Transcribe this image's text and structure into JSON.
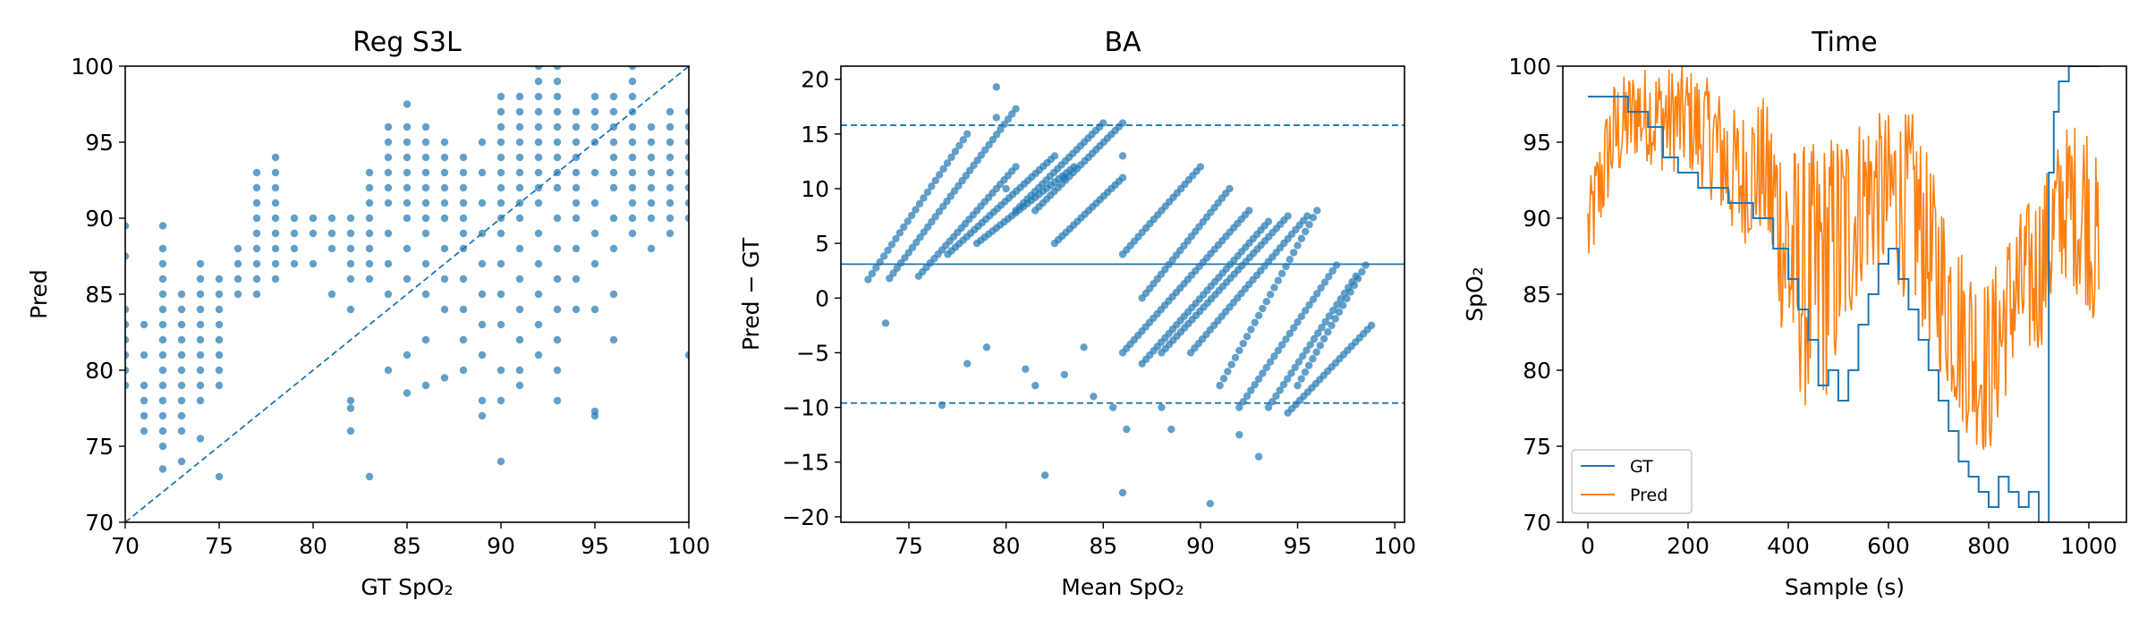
{
  "chart_data": [
    {
      "id": "scatter",
      "type": "scatter",
      "title": "Reg S3L",
      "xlabel": "GT SpO₂",
      "ylabel": "Pred",
      "xlim": [
        70,
        100
      ],
      "ylim": [
        70,
        100
      ],
      "xticks": [
        70,
        75,
        80,
        85,
        90,
        95,
        100
      ],
      "yticks": [
        70,
        75,
        80,
        85,
        90,
        95,
        100
      ],
      "identity_line": true,
      "point_color": "#1f77b4",
      "columns": [
        {
          "x": 70,
          "y": [
            79,
            80,
            81,
            82,
            83,
            84,
            87.5,
            89.5
          ]
        },
        {
          "x": 71,
          "y": [
            76,
            77,
            78,
            79,
            81,
            83
          ]
        },
        {
          "x": 72,
          "y": [
            73.5,
            75,
            76,
            77,
            78,
            79,
            80,
            81,
            82,
            83,
            84,
            85,
            86,
            87,
            88,
            89.5
          ]
        },
        {
          "x": 73,
          "y": [
            74,
            76,
            77,
            78,
            79,
            80,
            81,
            82,
            83,
            84,
            85
          ]
        },
        {
          "x": 74,
          "y": [
            75.5,
            78,
            79,
            80,
            81,
            82,
            83,
            84,
            85,
            86,
            87
          ]
        },
        {
          "x": 75,
          "y": [
            73,
            79,
            80,
            81,
            82,
            83,
            84,
            85,
            86
          ]
        },
        {
          "x": 76,
          "y": [
            85,
            86,
            87,
            88
          ]
        },
        {
          "x": 77,
          "y": [
            85,
            86,
            87,
            88,
            89,
            90,
            91,
            92,
            93
          ]
        },
        {
          "x": 78,
          "y": [
            86,
            87,
            88,
            89,
            90,
            91,
            92,
            93,
            94
          ]
        },
        {
          "x": 79,
          "y": [
            87,
            88,
            89,
            90
          ]
        },
        {
          "x": 80,
          "y": [
            87,
            89,
            90
          ]
        },
        {
          "x": 81,
          "y": [
            85,
            88,
            89,
            90
          ]
        },
        {
          "x": 82,
          "y": [
            76,
            77.5,
            78,
            84,
            86,
            87,
            88,
            89,
            90
          ]
        },
        {
          "x": 83,
          "y": [
            73,
            86,
            87,
            88,
            89,
            90,
            91,
            92,
            93
          ]
        },
        {
          "x": 84,
          "y": [
            80,
            85,
            87,
            89,
            91,
            92,
            93,
            94,
            95,
            96
          ]
        },
        {
          "x": 85,
          "y": [
            78.5,
            81,
            86,
            88,
            90,
            91,
            92,
            93,
            94,
            95,
            96,
            97.5
          ]
        },
        {
          "x": 86,
          "y": [
            79,
            82,
            85,
            87,
            89,
            90,
            91,
            92,
            93,
            94,
            95,
            96
          ]
        },
        {
          "x": 87,
          "y": [
            79.5,
            84,
            86,
            88,
            90,
            91,
            92,
            93,
            94,
            95
          ]
        },
        {
          "x": 88,
          "y": [
            80,
            82,
            84,
            86,
            88,
            89,
            90,
            91,
            92,
            93,
            94
          ]
        },
        {
          "x": 89,
          "y": [
            77,
            78,
            81,
            83,
            85,
            87,
            89,
            91,
            93,
            95
          ]
        },
        {
          "x": 90,
          "y": [
            74,
            78,
            80,
            83,
            85,
            87,
            89,
            90,
            91,
            92,
            93,
            94,
            95,
            96,
            97,
            98
          ]
        },
        {
          "x": 91,
          "y": [
            79,
            80,
            82,
            84,
            86,
            88,
            90,
            91,
            92,
            93,
            94,
            95,
            96,
            97,
            98
          ]
        },
        {
          "x": 92,
          "y": [
            81,
            83,
            85,
            87,
            89,
            91,
            92,
            93,
            94,
            95,
            96,
            97,
            98,
            99,
            100
          ]
        },
        {
          "x": 93,
          "y": [
            78,
            80,
            82,
            84,
            86,
            88,
            90,
            92,
            93,
            94,
            95,
            96,
            97,
            98,
            99,
            100
          ]
        },
        {
          "x": 94,
          "y": [
            84,
            86,
            88,
            90,
            91,
            92,
            93,
            94,
            95,
            96,
            97
          ]
        },
        {
          "x": 95,
          "y": [
            77,
            77.3,
            84,
            87,
            89,
            91,
            93,
            95,
            96,
            97,
            98
          ]
        },
        {
          "x": 96,
          "y": [
            82,
            85,
            88,
            90,
            92,
            93,
            94,
            95,
            96,
            97,
            98
          ]
        },
        {
          "x": 97,
          "y": [
            89,
            90,
            91,
            92,
            93,
            94,
            95,
            96,
            97,
            98,
            99,
            100
          ]
        },
        {
          "x": 98,
          "y": [
            88,
            90,
            91,
            92,
            93,
            94,
            95,
            96
          ]
        },
        {
          "x": 99,
          "y": [
            89,
            90,
            91,
            92,
            93,
            94,
            95,
            96,
            97
          ]
        },
        {
          "x": 100,
          "y": [
            81,
            90,
            91,
            92,
            93,
            94,
            95,
            96,
            97
          ]
        }
      ]
    },
    {
      "id": "bland-altman",
      "type": "scatter",
      "title": "BA",
      "xlabel": "Mean SpO₂",
      "ylabel": "Pred − GT",
      "xlim": [
        71.5,
        100.5
      ],
      "ylim": [
        -20.5,
        21.2
      ],
      "xticks": [
        75,
        80,
        85,
        90,
        95,
        100
      ],
      "yticks": [
        -20,
        -15,
        -10,
        -5,
        0,
        5,
        10,
        15,
        20
      ],
      "mean_bias": 3.1,
      "upper_loa": 15.8,
      "lower_loa": -9.6,
      "point_color": "#1f77b4",
      "stripes": [
        {
          "x0": 72.9,
          "y0": 1.7,
          "x1": 78.0,
          "y1": 15.0
        },
        {
          "x0": 74.0,
          "y0": 1.8,
          "x1": 80.5,
          "y1": 17.3
        },
        {
          "x0": 75.5,
          "y0": 2.0,
          "x1": 80.5,
          "y1": 12.0
        },
        {
          "x0": 77.0,
          "y0": 4.0,
          "x1": 82.5,
          "y1": 13.0
        },
        {
          "x0": 78.5,
          "y0": 5.0,
          "x1": 83.5,
          "y1": 12.0
        },
        {
          "x0": 80.5,
          "y0": 8.0,
          "x1": 85.0,
          "y1": 16.0
        },
        {
          "x0": 81.5,
          "y0": 8.0,
          "x1": 86.0,
          "y1": 16.0
        },
        {
          "x0": 82.5,
          "y0": 5.0,
          "x1": 86.0,
          "y1": 11.0
        },
        {
          "x0": 86.0,
          "y0": 4.0,
          "x1": 90.0,
          "y1": 12.0
        },
        {
          "x0": 87.0,
          "y0": 0.0,
          "x1": 91.5,
          "y1": 10.0
        },
        {
          "x0": 86.0,
          "y0": -5.0,
          "x1": 92.5,
          "y1": 8.0
        },
        {
          "x0": 87.0,
          "y0": -6.0,
          "x1": 93.5,
          "y1": 7.0
        },
        {
          "x0": 88.0,
          "y0": -5.0,
          "x1": 94.5,
          "y1": 7.5
        },
        {
          "x0": 89.5,
          "y0": -5.0,
          "x1": 95.5,
          "y1": 7.5
        },
        {
          "x0": 91.0,
          "y0": -8.0,
          "x1": 96.0,
          "y1": 8.0
        },
        {
          "x0": 92.0,
          "y0": -10.0,
          "x1": 97.0,
          "y1": 3.0
        },
        {
          "x0": 93.5,
          "y0": -10.0,
          "x1": 98.0,
          "y1": 2.0
        },
        {
          "x0": 95.0,
          "y0": -8.0,
          "x1": 98.5,
          "y1": 3.0
        },
        {
          "x0": 94.5,
          "y0": -10.5,
          "x1": 98.8,
          "y1": -2.5
        }
      ],
      "extra_points": [
        [
          73.8,
          -2.3
        ],
        [
          79.5,
          19.3
        ],
        [
          79.0,
          -4.5
        ],
        [
          78.0,
          -6.0
        ],
        [
          76.7,
          -9.8
        ],
        [
          81.0,
          -6.5
        ],
        [
          82.0,
          -16.2
        ],
        [
          81.5,
          -8.0
        ],
        [
          83.0,
          -7.0
        ],
        [
          84.0,
          -4.5
        ],
        [
          84.5,
          -9.0
        ],
        [
          85.5,
          -10.0
        ],
        [
          86.0,
          -17.8
        ],
        [
          86.2,
          -12.0
        ],
        [
          88.0,
          -10.0
        ],
        [
          88.5,
          -12.0
        ],
        [
          90.5,
          -18.8
        ],
        [
          92.0,
          -12.5
        ],
        [
          93.0,
          -14.5
        ],
        [
          86.0,
          13.0
        ],
        [
          83.0,
          11.0
        ],
        [
          80.0,
          10.0
        ],
        [
          79.5,
          16.5
        ]
      ]
    },
    {
      "id": "time-series",
      "type": "line",
      "title": "Time",
      "xlabel": "Sample (s)",
      "ylabel": "SpO₂",
      "xlim": [
        -50,
        1075
      ],
      "ylim": [
        70,
        100
      ],
      "xticks": [
        0,
        200,
        400,
        600,
        800,
        1000
      ],
      "yticks": [
        70,
        75,
        80,
        85,
        90,
        95,
        100
      ],
      "legend_position": "lower left",
      "series": [
        {
          "name": "GT",
          "color": "#1f77b4",
          "steps": [
            [
              0,
              98
            ],
            [
              80,
              97
            ],
            [
              120,
              96
            ],
            [
              150,
              94
            ],
            [
              180,
              93
            ],
            [
              220,
              92
            ],
            [
              280,
              91
            ],
            [
              330,
              90
            ],
            [
              370,
              88
            ],
            [
              400,
              86
            ],
            [
              420,
              84
            ],
            [
              440,
              82
            ],
            [
              460,
              79
            ],
            [
              480,
              80
            ],
            [
              500,
              78
            ],
            [
              520,
              80
            ],
            [
              540,
              83
            ],
            [
              560,
              85
            ],
            [
              580,
              87
            ],
            [
              600,
              88
            ],
            [
              620,
              86
            ],
            [
              640,
              84
            ],
            [
              660,
              82
            ],
            [
              680,
              80
            ],
            [
              700,
              78
            ],
            [
              720,
              76
            ],
            [
              740,
              74
            ],
            [
              760,
              73
            ],
            [
              780,
              72
            ],
            [
              800,
              71
            ],
            [
              820,
              73
            ],
            [
              840,
              72
            ],
            [
              860,
              71
            ],
            [
              880,
              72
            ],
            [
              900,
              70
            ],
            [
              910,
              65
            ],
            [
              920,
              93
            ],
            [
              930,
              97
            ],
            [
              940,
              99
            ],
            [
              960,
              100
            ]
          ],
          "end_x": 1020
        },
        {
          "name": "Pred",
          "color": "#ff7f0e",
          "envelope": [
            [
              0,
              86,
              92
            ],
            [
              50,
              92,
              99
            ],
            [
              100,
              94,
              100
            ],
            [
              150,
              93,
              100
            ],
            [
              200,
              93,
              100
            ],
            [
              250,
              91,
              99
            ],
            [
              300,
              88,
              97
            ],
            [
              350,
              89,
              98
            ],
            [
              400,
              80,
              95
            ],
            [
              450,
              76,
              95
            ],
            [
              500,
              80,
              96
            ],
            [
              550,
              86,
              97
            ],
            [
              600,
              86,
              97
            ],
            [
              650,
              84,
              97
            ],
            [
              700,
              80,
              92
            ],
            [
              750,
              76,
              88
            ],
            [
              800,
              74,
              86
            ],
            [
              850,
              80,
              90
            ],
            [
              900,
              81,
              92
            ],
            [
              950,
              86,
              96
            ],
            [
              1000,
              84,
              97
            ],
            [
              1020,
              81,
              93
            ]
          ]
        }
      ]
    }
  ]
}
